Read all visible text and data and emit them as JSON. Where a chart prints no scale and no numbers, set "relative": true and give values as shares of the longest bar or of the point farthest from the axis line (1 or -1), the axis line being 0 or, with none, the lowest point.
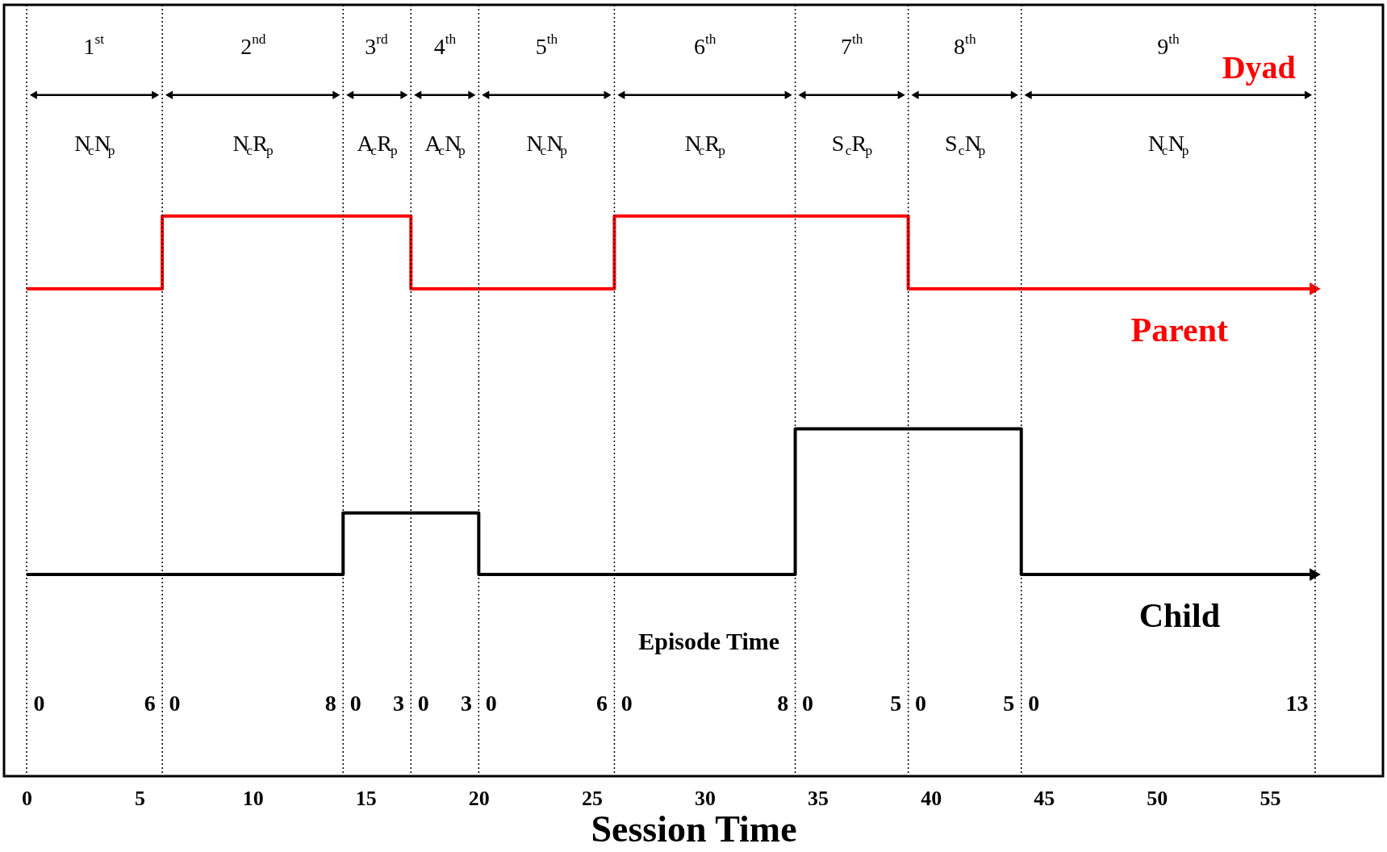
{
  "chart_data": {
    "type": "step",
    "relative": true,
    "xlabel": "Session Time",
    "xlim": [
      -1,
      60
    ],
    "xticks": [
      0,
      5,
      10,
      15,
      20,
      25,
      30,
      35,
      40,
      45,
      50,
      55
    ],
    "grid": false,
    "line_style": "solid",
    "marker": "none",
    "series": [
      {
        "name": "Parent",
        "color": "#ff0000",
        "x": [
          0,
          6,
          17,
          26,
          39,
          57
        ],
        "values": [
          0.87,
          1,
          0.87,
          1,
          0.87,
          0.87
        ]
      },
      {
        "name": "Child",
        "color": "#000000",
        "x": [
          0,
          14,
          20,
          34,
          44,
          57
        ],
        "values": [
          0.36,
          0.47,
          0.36,
          0.62,
          0.36,
          0.36
        ]
      }
    ],
    "ref_lines": [
      {
        "axis": "x",
        "value": 0,
        "line_style": "dotted",
        "color": "#000000"
      },
      {
        "axis": "x",
        "value": 6,
        "line_style": "dotted",
        "color": "#000000"
      },
      {
        "axis": "x",
        "value": 14,
        "line_style": "dotted",
        "color": "#000000"
      },
      {
        "axis": "x",
        "value": 17,
        "line_style": "dotted",
        "color": "#000000"
      },
      {
        "axis": "x",
        "value": 20,
        "line_style": "dotted",
        "color": "#000000"
      },
      {
        "axis": "x",
        "value": 26,
        "line_style": "dotted",
        "color": "#000000"
      },
      {
        "axis": "x",
        "value": 34,
        "line_style": "dotted",
        "color": "#000000"
      },
      {
        "axis": "x",
        "value": 39,
        "line_style": "dotted",
        "color": "#000000"
      },
      {
        "axis": "x",
        "value": 44,
        "line_style": "dotted",
        "color": "#000000"
      },
      {
        "axis": "x",
        "value": 57,
        "line_style": "dotted",
        "color": "#000000"
      }
    ],
    "annotations": [
      "1$^{st}$",
      "2$^{nd}$",
      "3$^{rd}$",
      "4$^{th}$",
      "5$^{th}$",
      "6$^{th}$",
      "7$^{th}$",
      "8$^{th}$",
      "9$^{th}$",
      "N$_{c}$N$_{p}$",
      "N$_{c}$R$_{p}$",
      "A$_{c}$R$_{p}$",
      "A$_{c}$N$_{p}$",
      "N$_{c}$N$_{p}$",
      "N$_{c}$R$_{p}$",
      "S$_{c}$R$_{p}$",
      "S$_{c}$N$_{p}$",
      "N$_{c}$N$_{p}$",
      "0",
      "6",
      "0",
      "8",
      "0",
      "3",
      "0",
      "3",
      "0",
      "6",
      "0",
      "8",
      "0",
      "5",
      "0",
      "5",
      "0",
      "13",
      "Episode Time",
      "Dyad"
    ]
  }
}
